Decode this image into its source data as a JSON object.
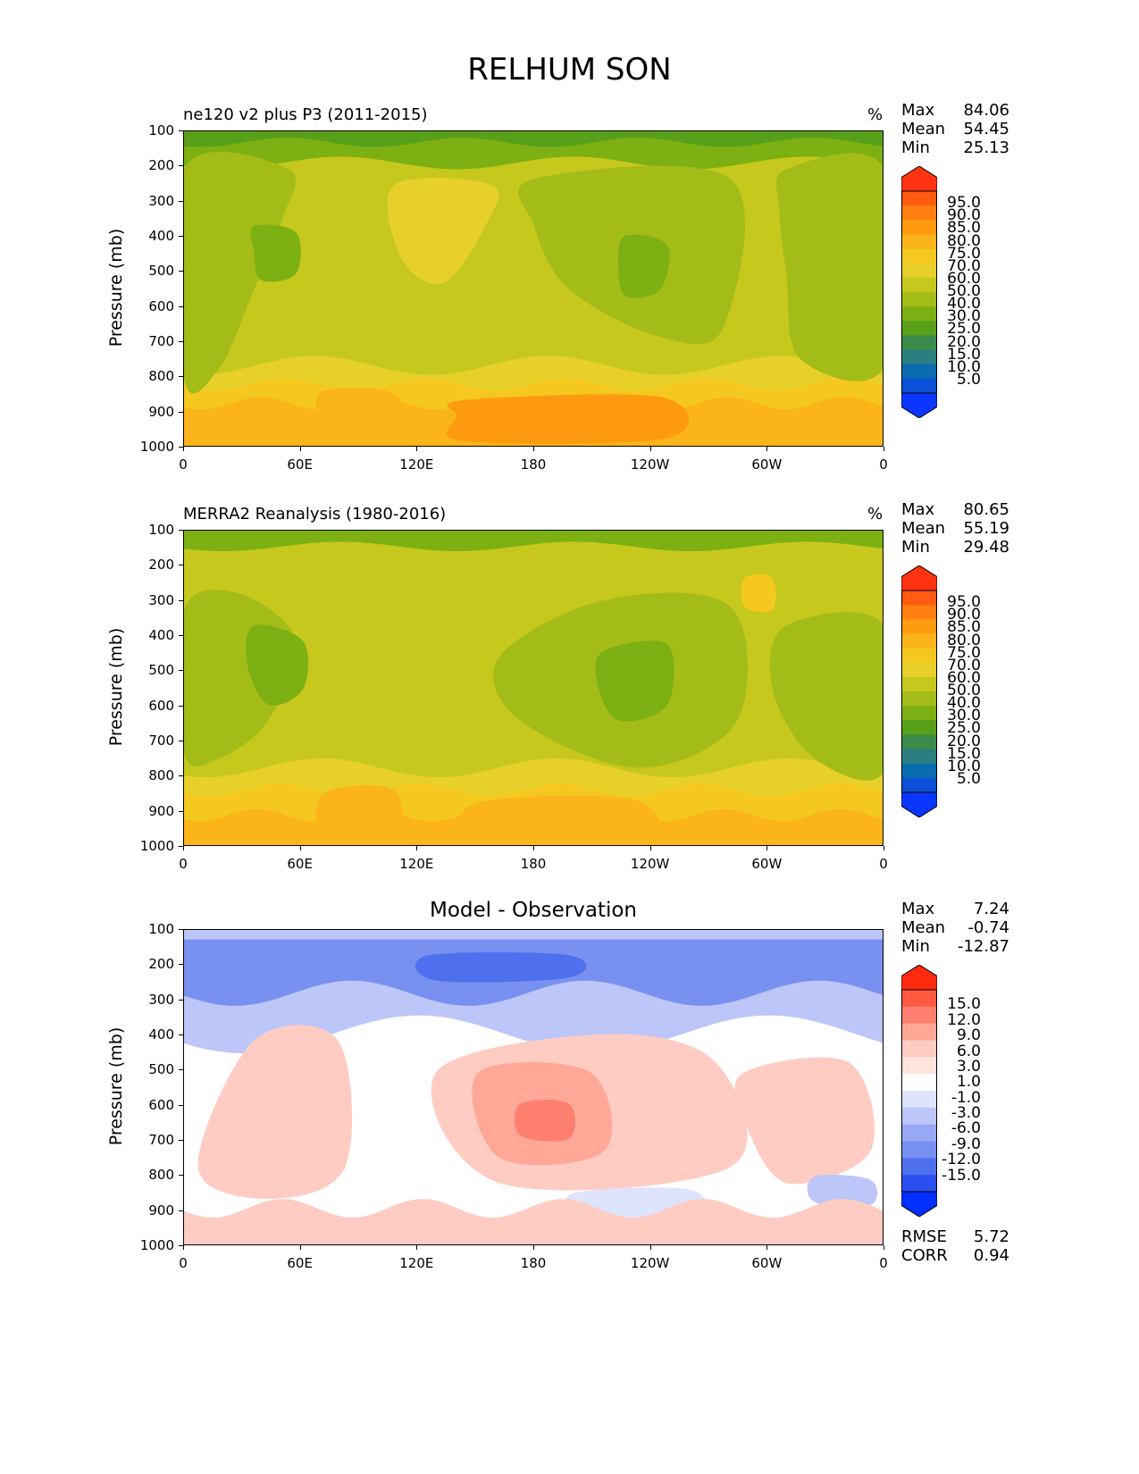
{
  "chart_data": [
    {
      "type": "heatmap",
      "panel": "model",
      "title": "ne120 v2 plus P3 (2011-2015)",
      "units": "%",
      "ylabel": "Pressure (mb)",
      "xlabel": "",
      "xticks": [
        "0",
        "60E",
        "120E",
        "180",
        "120W",
        "60W",
        "0"
      ],
      "yticks": [
        "100",
        "200",
        "300",
        "400",
        "500",
        "600",
        "700",
        "800",
        "900",
        "1000"
      ],
      "ylim": [
        100,
        1000
      ],
      "stats": [
        {
          "name": "Max",
          "value": "84.06"
        },
        {
          "name": "Mean",
          "value": "54.45"
        },
        {
          "name": "Min",
          "value": "25.13"
        }
      ],
      "colorbar_levels": [
        "95.0",
        "90.0",
        "85.0",
        "80.0",
        "75.0",
        "70.0",
        "60.0",
        "50.0",
        "40.0",
        "30.0",
        "25.0",
        "20.0",
        "15.0",
        "10.0",
        "5.0"
      ]
    },
    {
      "type": "heatmap",
      "panel": "reference",
      "title": "MERRA2 Reanalysis (1980-2016)",
      "units": "%",
      "ylabel": "Pressure (mb)",
      "xlabel": "",
      "xticks": [
        "0",
        "60E",
        "120E",
        "180",
        "120W",
        "60W",
        "0"
      ],
      "yticks": [
        "100",
        "200",
        "300",
        "400",
        "500",
        "600",
        "700",
        "800",
        "900",
        "1000"
      ],
      "ylim": [
        100,
        1000
      ],
      "stats": [
        {
          "name": "Max",
          "value": "80.65"
        },
        {
          "name": "Mean",
          "value": "55.19"
        },
        {
          "name": "Min",
          "value": "29.48"
        }
      ],
      "colorbar_levels": [
        "95.0",
        "90.0",
        "85.0",
        "80.0",
        "75.0",
        "70.0",
        "60.0",
        "50.0",
        "40.0",
        "30.0",
        "25.0",
        "20.0",
        "15.0",
        "10.0",
        "5.0"
      ]
    },
    {
      "type": "heatmap",
      "panel": "difference",
      "title": "Model - Observation",
      "units": "",
      "ylabel": "Pressure (mb)",
      "xlabel": "",
      "xticks": [
        "0",
        "60E",
        "120E",
        "180",
        "120W",
        "60W",
        "0"
      ],
      "yticks": [
        "100",
        "200",
        "300",
        "400",
        "500",
        "600",
        "700",
        "800",
        "900",
        "1000"
      ],
      "ylim": [
        100,
        1000
      ],
      "stats": [
        {
          "name": "Max",
          "value": "7.24"
        },
        {
          "name": "Mean",
          "value": "-0.74"
        },
        {
          "name": "Min",
          "value": "-12.87"
        }
      ],
      "extra_stats": [
        {
          "name": "RMSE",
          "value": "5.72"
        },
        {
          "name": "CORR",
          "value": "0.94"
        }
      ],
      "colorbar_levels": [
        "15.0",
        "12.0",
        "9.0",
        "6.0",
        "3.0",
        "1.0",
        "-1.0",
        "-3.0",
        "-6.0",
        "-9.0",
        "-12.0",
        "-15.0"
      ]
    }
  ],
  "figure": {
    "title": "RELHUM SON"
  },
  "colors": {
    "rh_scale": [
      "#ff3310",
      "#ff5a10",
      "#ff8010",
      "#ff9a10",
      "#fbb41a",
      "#f5c820",
      "#e8d02a",
      "#c6c81e",
      "#a4bc18",
      "#7db012",
      "#58a01a",
      "#3b8c4a",
      "#2a7e80",
      "#0a6cb0",
      "#0c50d8",
      "#0a36ff"
    ],
    "diff_scale": [
      "#ff2a10",
      "#ff5a40",
      "#ff8070",
      "#ffa898",
      "#ffccc4",
      "#ffe4de",
      "#ffffff",
      "#dde4fc",
      "#bcc6f8",
      "#98a8f4",
      "#7890f0",
      "#4f70ee",
      "#2a4ff0",
      "#0030ff"
    ]
  }
}
